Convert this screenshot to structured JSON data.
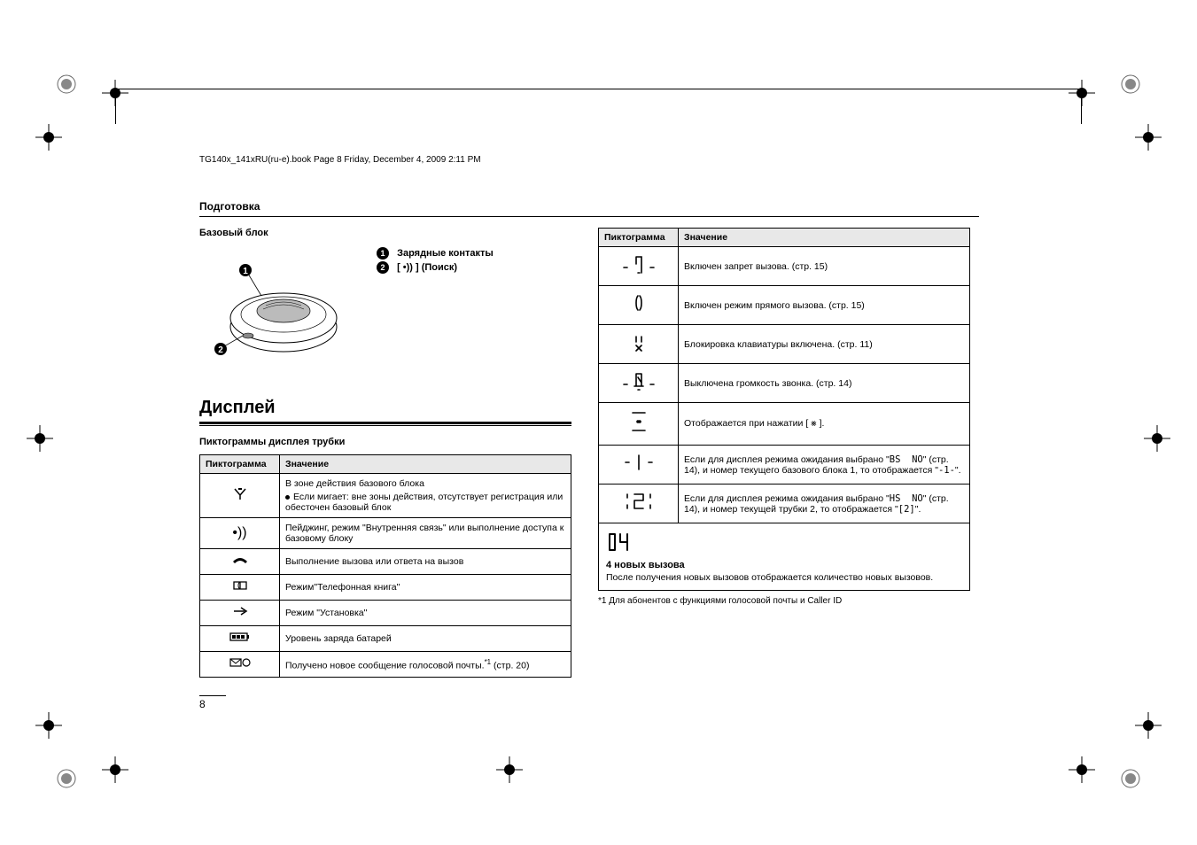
{
  "header_line": "TG140x_141xRU(ru-e).book  Page 8  Friday, December 4, 2009  2:11 PM",
  "section_title": "Подготовка",
  "base_unit_title": "Базовый блок",
  "callouts": [
    {
      "num": "1",
      "label": "Зарядные контакты"
    },
    {
      "num": "2",
      "label": "[ •)) ] (Поиск)"
    }
  ],
  "display_title": "Дисплей",
  "icons_subtitle": "Пиктограммы дисплея трубки",
  "table1": {
    "col1": "Пиктограмма",
    "col2": "Значение",
    "rows": [
      {
        "icon": "▼",
        "icon_svg": "antenna",
        "text": "В зоне действия базового блока",
        "bullet": "Если мигает: вне зоны действия, отсутствует регистрация или обесточен базовый блок"
      },
      {
        "icon": "•))",
        "text": "Пейджинг, режим \"Внутренняя связь\" или выполнение доступа к базовому блоку"
      },
      {
        "icon": "☎",
        "icon_svg": "handset",
        "text": "Выполнение вызова или ответа на вызов"
      },
      {
        "icon": "📖",
        "icon_svg": "book",
        "text": "Режим\"Телефонная книга\""
      },
      {
        "icon": "→",
        "icon_svg": "arrow",
        "text": "Режим \"Установка\""
      },
      {
        "icon": "▮▮▮",
        "icon_svg": "battery",
        "text": "Уровень заряда батарей"
      },
      {
        "icon": "✉○",
        "icon_svg": "mail",
        "text": "Получено новое сообщение голосовой почты.",
        "sup": "*1",
        "suffix": " (стр. 20)"
      }
    ]
  },
  "table2": {
    "col1": "Пиктограмма",
    "col2": "Значение",
    "rows": [
      {
        "icon_lcd": "barred",
        "text": "Включен запрет вызова. (стр. 15)"
      },
      {
        "icon_lcd": "direct",
        "text": "Включен режим прямого вызова. (стр. 15)"
      },
      {
        "icon_lcd": "keylock",
        "text": "Блокировка клавиатуры включена. (стр. 11)"
      },
      {
        "icon_lcd": "ringer_off",
        "text": "Выключена громкость звонка. (стр. 14)"
      },
      {
        "icon_lcd": "pause",
        "text": "Отображается при нажатии [ ⨳ ]."
      },
      {
        "icon_lcd": "bs1",
        "text_html": "Если для дисплея режима ожидания выбрано \"<span class='mono'>BS&nbsp;&nbsp;NO</span>\" (стр. 14), и номер текущего базового блока 1, то отображается \"<span class='mono'>-1-</span>\"."
      },
      {
        "icon_lcd": "hs2",
        "text_html": "Если для дисплея режима ожидания выбрано \"<span class='mono'>HS&nbsp;&nbsp;NO</span>\" (стр. 14), и номер текущей трубки 2, то отображается \"<span class='mono'>[2]</span>\"."
      }
    ]
  },
  "new_calls": {
    "icon": "04",
    "title": "4 новых вызова",
    "desc": "После получения новых вызовов отображается количество новых вызовов."
  },
  "footnote": "*1  Для абонентов с функциями голосовой почты и Caller ID",
  "page_number": "8"
}
